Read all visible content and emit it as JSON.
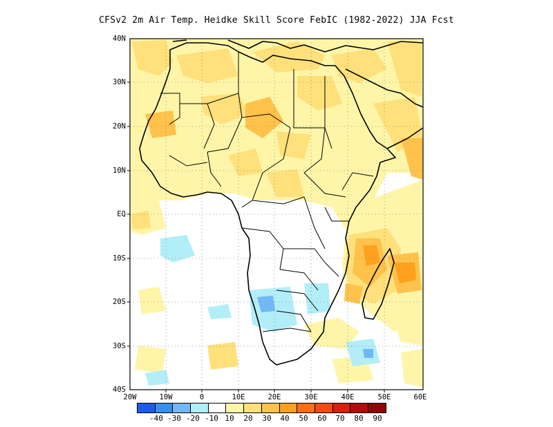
{
  "title": "CFSv2  2m Air Temp. Heidke Skill Score FebIC (1982-2022) JJA Fcst",
  "map": {
    "region": "Africa",
    "lat_labels": [
      "40N",
      "30N",
      "20N",
      "10N",
      "EQ",
      "10S",
      "20S",
      "30S",
      "40S"
    ],
    "lon_labels": [
      "20W",
      "10W",
      "0",
      "10E",
      "20E",
      "30E",
      "40E",
      "50E",
      "60E"
    ],
    "grid": true,
    "grid_style": "dotted"
  },
  "colorbar": {
    "colors": [
      "#1a5ee8",
      "#3a8ef0",
      "#72b8f5",
      "#b2eef8",
      "#ffffff",
      "#fff5a8",
      "#ffe07a",
      "#ffc24a",
      "#ffa11e",
      "#ff6e10",
      "#f24a10",
      "#d8200c",
      "#b40a0a",
      "#8e0606"
    ],
    "labels": [
      "-40",
      "-30",
      "-20",
      "-10",
      "10",
      "20",
      "30",
      "40",
      "50",
      "60",
      "70",
      "80",
      "90"
    ]
  },
  "colors": {
    "neg1": "#b2eef8",
    "neg2": "#72b8f5",
    "neg3": "#3a8ef0",
    "pos1": "#fff5a8",
    "pos2": "#ffe07a",
    "pos3": "#ffc24a",
    "pos4": "#ffa11e",
    "pos5": "#ff6e10"
  }
}
